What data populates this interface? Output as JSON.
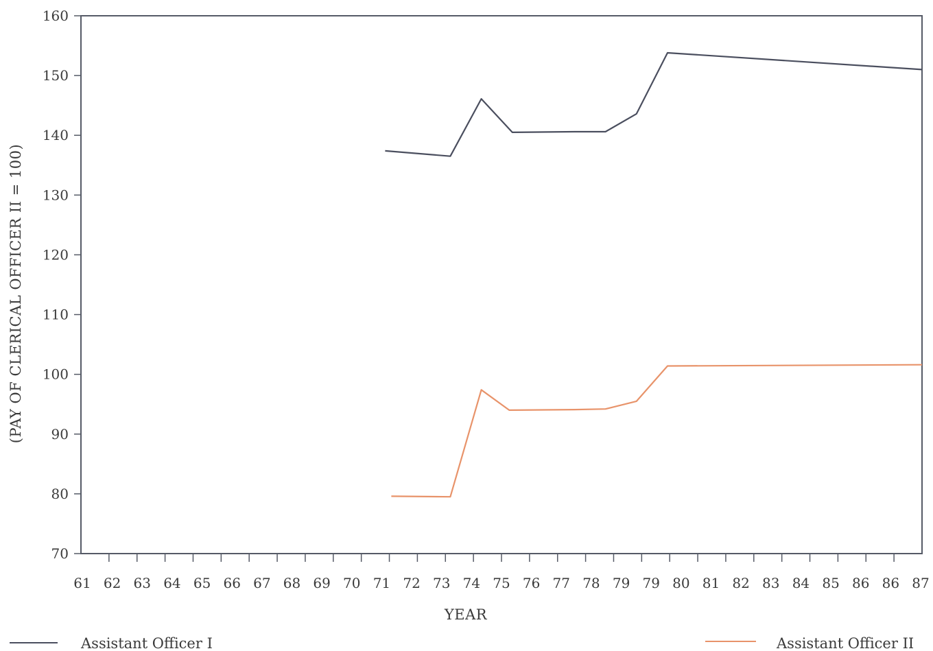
{
  "chart_data": {
    "type": "line",
    "title": "",
    "xlabel": "YEAR",
    "ylabel": "(PAY OF CLERICAL OFFICER II = 100)",
    "ylim": [
      70,
      160
    ],
    "yticks": [
      70,
      80,
      90,
      100,
      110,
      120,
      130,
      140,
      150,
      160
    ],
    "x_tick_labels": [
      "61",
      "62",
      "63",
      "64",
      "65",
      "66",
      "67",
      "68",
      "69",
      "70",
      "71",
      "72",
      "73",
      "74",
      "75",
      "76",
      "77",
      "78",
      "79",
      "79",
      "80",
      "81",
      "82",
      "83",
      "84",
      "85",
      "86",
      "86",
      "87"
    ],
    "grid": false,
    "legend_position": "bottom",
    "series": [
      {
        "name": "Assistant Officer I",
        "color": "#4a4e5e",
        "points": [
          {
            "x": 70.8,
            "y": 137.4
          },
          {
            "x": 72.9,
            "y": 136.5
          },
          {
            "x": 73.9,
            "y": 146.1
          },
          {
            "x": 74.9,
            "y": 140.5
          },
          {
            "x": 76.9,
            "y": 140.6
          },
          {
            "x": 77.9,
            "y": 140.6
          },
          {
            "x": 78.9,
            "y": 143.6
          },
          {
            "x": 79.9,
            "y": 153.8
          },
          {
            "x": 88.1,
            "y": 151.0
          }
        ]
      },
      {
        "name": "Assistant Officer II",
        "color": "#e8936a",
        "points": [
          {
            "x": 71.0,
            "y": 79.6
          },
          {
            "x": 72.9,
            "y": 79.5
          },
          {
            "x": 73.9,
            "y": 97.4
          },
          {
            "x": 74.8,
            "y": 94.0
          },
          {
            "x": 76.9,
            "y": 94.1
          },
          {
            "x": 77.9,
            "y": 94.2
          },
          {
            "x": 78.9,
            "y": 95.5
          },
          {
            "x": 79.9,
            "y": 101.4
          },
          {
            "x": 88.1,
            "y": 101.6
          }
        ]
      }
    ]
  }
}
